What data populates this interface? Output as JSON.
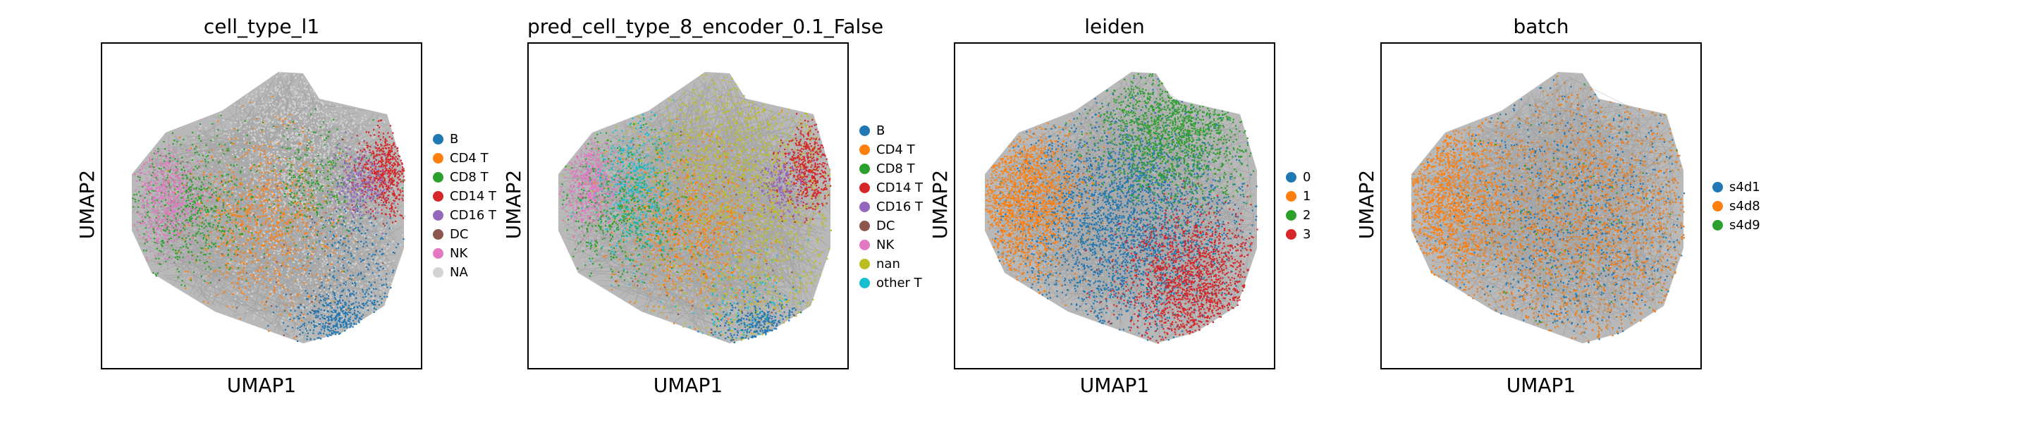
{
  "palette": {
    "blue": "#1f77b4",
    "orange": "#ff7f0e",
    "green": "#2ca02c",
    "red": "#d62728",
    "purple": "#9467bd",
    "brown": "#8c564b",
    "pink": "#e377c2",
    "lightgray": "#d3d3d3",
    "olive": "#bcbd22",
    "cyan": "#17becf",
    "edge_gray": "#808080"
  },
  "chart_data": [
    {
      "type": "scatter",
      "title": "cell_type_l1",
      "xlabel": "UMAP1",
      "ylabel": "UMAP2",
      "grid": false,
      "legend_position": "right",
      "series": [
        {
          "name": "B",
          "color": "#1f77b4"
        },
        {
          "name": "CD4 T",
          "color": "#ff7f0e"
        },
        {
          "name": "CD8 T",
          "color": "#2ca02c"
        },
        {
          "name": "CD14 T",
          "color": "#d62728"
        },
        {
          "name": "CD16 T",
          "color": "#9467bd"
        },
        {
          "name": "DC",
          "color": "#8c564b"
        },
        {
          "name": "NK",
          "color": "#e377c2"
        },
        {
          "name": "NA",
          "color": "#d3d3d3"
        }
      ]
    },
    {
      "type": "scatter",
      "title": "pred_cell_type_8_encoder_0.1_False",
      "xlabel": "UMAP1",
      "ylabel": "UMAP2",
      "grid": false,
      "legend_position": "right",
      "series": [
        {
          "name": "B",
          "color": "#1f77b4"
        },
        {
          "name": "CD4 T",
          "color": "#ff7f0e"
        },
        {
          "name": "CD8 T",
          "color": "#2ca02c"
        },
        {
          "name": "CD14 T",
          "color": "#d62728"
        },
        {
          "name": "CD16 T",
          "color": "#9467bd"
        },
        {
          "name": "DC",
          "color": "#8c564b"
        },
        {
          "name": "NK",
          "color": "#e377c2"
        },
        {
          "name": "nan",
          "color": "#bcbd22"
        },
        {
          "name": "other T",
          "color": "#17becf"
        }
      ]
    },
    {
      "type": "scatter",
      "title": "leiden",
      "xlabel": "UMAP1",
      "ylabel": "UMAP2",
      "grid": false,
      "legend_position": "right",
      "series": [
        {
          "name": "0",
          "color": "#1f77b4"
        },
        {
          "name": "1",
          "color": "#ff7f0e"
        },
        {
          "name": "2",
          "color": "#2ca02c"
        },
        {
          "name": "3",
          "color": "#d62728"
        }
      ]
    },
    {
      "type": "scatter",
      "title": "batch",
      "xlabel": "UMAP1",
      "ylabel": "UMAP2",
      "grid": false,
      "legend_position": "right",
      "series": [
        {
          "name": "s4d1",
          "color": "#1f77b4"
        },
        {
          "name": "s4d8",
          "color": "#ff7f0e"
        },
        {
          "name": "s4d9",
          "color": "#2ca02c"
        }
      ]
    }
  ]
}
